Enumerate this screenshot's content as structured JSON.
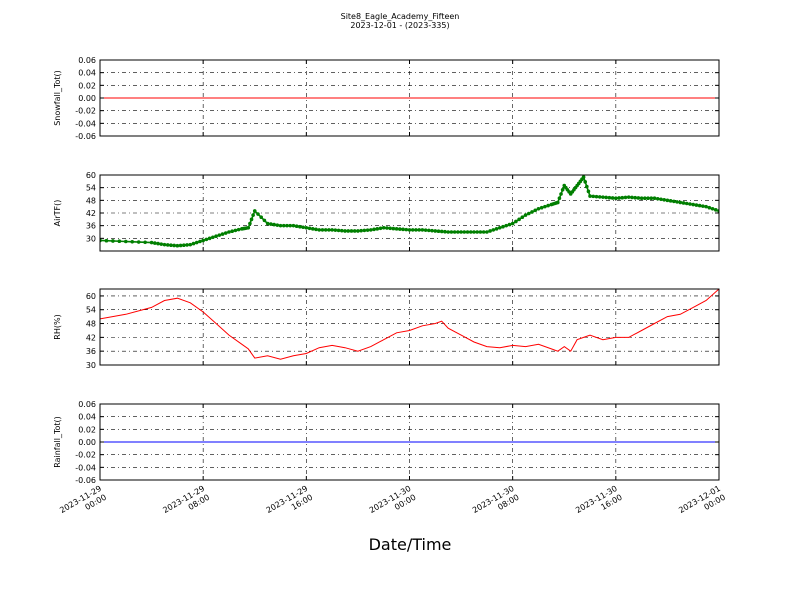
{
  "title": "Site8_Eagle_Academy_Fifteen",
  "subtitle": "2023-12-01 - (2023-335)",
  "xlabel": "Date/Time",
  "x_ticks": [
    {
      "l1": "2023-11-29",
      "l2": "00:00"
    },
    {
      "l1": "2023-11-29",
      "l2": "08:00"
    },
    {
      "l1": "2023-11-29",
      "l2": "16:00"
    },
    {
      "l1": "2023-11-30",
      "l2": "00:00"
    },
    {
      "l1": "2023-11-30",
      "l2": "08:00"
    },
    {
      "l1": "2023-11-30",
      "l2": "16:00"
    },
    {
      "l1": "2023-12-01",
      "l2": "00:00"
    }
  ],
  "chart_data": [
    {
      "type": "line",
      "ylabel": "Snowfall_Tot()",
      "ylim": [
        -0.06,
        0.06
      ],
      "yticks": [
        "0.06",
        "0.04",
        "0.02",
        "0.00",
        "-0.02",
        "-0.04",
        "-0.06"
      ],
      "ytick_values": [
        0.06,
        0.04,
        0.02,
        0.0,
        -0.02,
        -0.04,
        -0.06
      ],
      "grid": true,
      "color": "#ff0000",
      "markers": false,
      "x": [
        0,
        48
      ],
      "values": [
        0.0,
        0.0
      ]
    },
    {
      "type": "line",
      "ylabel": "AirTF()",
      "ylim": [
        24,
        60
      ],
      "yticks": [
        "60",
        "54",
        "48",
        "42",
        "36",
        "30"
      ],
      "ytick_values": [
        60,
        54,
        48,
        42,
        36,
        30
      ],
      "grid": true,
      "color": "#007f00",
      "markers": true,
      "x": [
        0,
        2,
        4,
        5,
        6,
        7,
        8,
        9,
        10,
        11,
        11.5,
        12,
        13,
        14,
        15,
        16,
        17,
        18,
        19,
        20,
        21,
        22,
        23,
        24,
        25,
        26,
        27,
        28,
        29,
        30,
        31,
        32,
        33,
        34,
        35,
        35.5,
        36,
        36.5,
        37,
        37.5,
        38,
        39,
        40,
        41,
        42,
        43,
        44,
        45,
        46,
        47,
        48
      ],
      "values": [
        29,
        28.5,
        28,
        27,
        26.5,
        27,
        29,
        31,
        33,
        34.5,
        35,
        43,
        37,
        36,
        36,
        35,
        34,
        34,
        33.5,
        33.5,
        34,
        35,
        34.5,
        34,
        34,
        33.5,
        33,
        33,
        33,
        33,
        35,
        37,
        41,
        44,
        46,
        47,
        55,
        51,
        55,
        59,
        50,
        49.5,
        49,
        49.5,
        49,
        49,
        48,
        47,
        46,
        45,
        43
      ]
    },
    {
      "type": "line",
      "ylabel": "RH(%)",
      "ylim": [
        30,
        63
      ],
      "yticks": [
        "60",
        "54",
        "48",
        "42",
        "36",
        "30"
      ],
      "ytick_values": [
        60,
        54,
        48,
        42,
        36,
        30
      ],
      "grid": true,
      "color": "#ff0000",
      "markers": false,
      "x": [
        0,
        2,
        4,
        5,
        6,
        7,
        8,
        9,
        10,
        11,
        11.5,
        12,
        13,
        14,
        15,
        16,
        17,
        18,
        19,
        20,
        21,
        22,
        23,
        24,
        25,
        26,
        26.5,
        27,
        28,
        29,
        30,
        31,
        32,
        33,
        34,
        35,
        35.5,
        36,
        36.5,
        37,
        37.5,
        38,
        39,
        40,
        41,
        42,
        43,
        44,
        45,
        46,
        47,
        48
      ],
      "values": [
        50,
        52,
        55,
        58,
        59,
        57,
        53,
        48,
        43,
        39,
        37,
        33,
        34,
        32.5,
        34,
        35,
        37.5,
        38.5,
        37.5,
        36,
        38,
        41,
        44,
        45,
        47,
        48,
        49,
        46,
        43,
        40,
        38,
        37.5,
        38.5,
        38,
        39,
        37,
        36,
        38,
        36,
        41,
        42,
        43,
        41,
        42,
        42,
        45,
        48,
        51,
        52,
        55,
        58,
        63
      ]
    },
    {
      "type": "line",
      "ylabel": "Rainfall_Tot()",
      "ylim": [
        -0.06,
        0.06
      ],
      "yticks": [
        "0.06",
        "0.04",
        "0.02",
        "0.00",
        "-0.02",
        "-0.04",
        "-0.06"
      ],
      "ytick_values": [
        0.06,
        0.04,
        0.02,
        0.0,
        -0.02,
        -0.04,
        -0.06
      ],
      "grid": true,
      "color": "#0000ff",
      "markers": false,
      "x": [
        0,
        48
      ],
      "values": [
        0.0,
        0.0
      ]
    }
  ]
}
